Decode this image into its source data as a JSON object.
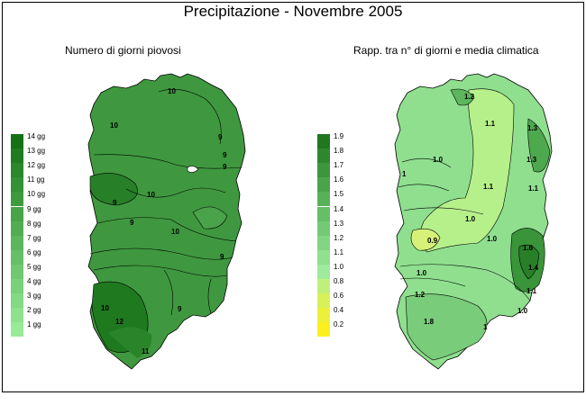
{
  "title": "Precipitazione - Novembre 2005",
  "maps": [
    {
      "subtitle": "Numero di giorni piovosi",
      "legend": {
        "labels": [
          "14 gg",
          "13 gg",
          "12 gg",
          "11 gg",
          "10 gg",
          "9 gg",
          "8 gg",
          "7 gg",
          "6 gg",
          "5 gg",
          "4 gg",
          "3 gg",
          "2 gg",
          "1 gg"
        ],
        "colors": [
          "#147114",
          "#1f7d1f",
          "#2a882a",
          "#339233",
          "#3d9b3d",
          "#47a447",
          "#52ad52",
          "#5cb65c",
          "#66bf66",
          "#70c870",
          "#7ad17a",
          "#84d984",
          "#8ee28e",
          "#98eb98"
        ]
      },
      "contour_labels": [
        "10",
        "10",
        "9",
        "9",
        "9",
        "9",
        "9",
        "10",
        "10",
        "9",
        "9",
        "10",
        "11",
        "12"
      ]
    },
    {
      "subtitle": "Rapp. tra n° di giorni e media climatica",
      "legend": {
        "labels": [
          "1.9",
          "1.8",
          "1.7",
          "1.6",
          "1.5",
          "1.4",
          "1.3",
          "1.2",
          "1.1",
          "1.0",
          "0.8",
          "0.6",
          "0.4",
          "0.2"
        ],
        "colors": [
          "#207720",
          "#2e872e",
          "#3c963c",
          "#4aa44a",
          "#58b158",
          "#66be66",
          "#74ca74",
          "#82d582",
          "#90e090",
          "#9eea9e",
          "#bff07a",
          "#d8f05a",
          "#ecf03a",
          "#fbf01e"
        ]
      },
      "contour_labels": [
        "1.2",
        "1.1",
        "1.3",
        "1.3",
        "1.1",
        "1.0",
        "1",
        "1.1",
        "0.9",
        "1.0",
        "1.0",
        "1.6",
        "1.4",
        "1.1",
        "1.0",
        "1.2",
        "1.0",
        "1.8",
        "1"
      ]
    }
  ]
}
